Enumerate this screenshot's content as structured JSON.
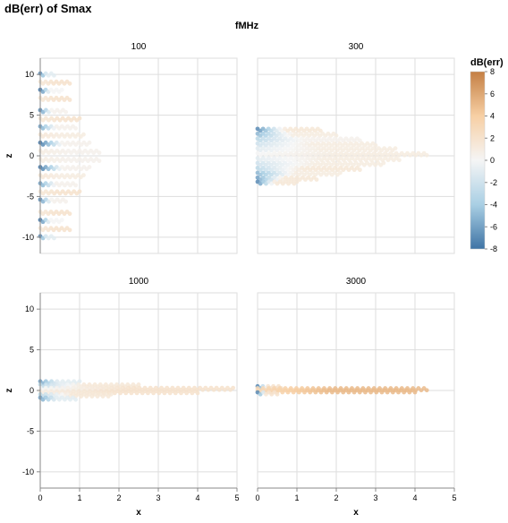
{
  "chart_data": {
    "type": "scatter",
    "title": "dB(err) of Smax",
    "facet_header": "fMHz",
    "xlabel": "x",
    "ylabel": "z",
    "xlim": [
      0,
      5
    ],
    "ylim": [
      -12,
      12
    ],
    "x_ticks": [
      0,
      1,
      2,
      3,
      4,
      5
    ],
    "y_ticks": [
      -10,
      -5,
      0,
      5,
      10
    ],
    "legend": {
      "title": "dB(err)",
      "placement": "right",
      "ticks": [
        8,
        6,
        4,
        2,
        0,
        -2,
        -4,
        -6,
        -8
      ],
      "domain": [
        -8,
        8
      ],
      "colors": {
        "low": "#3f74a5",
        "mid_low": "#a9cfe4",
        "mid": "#f5f5f5",
        "mid_high": "#f7cfa4",
        "high": "#c47f43"
      }
    },
    "facets": [
      {
        "label": "100",
        "clusters": [
          {
            "z": 10,
            "x_max": 0.35,
            "v0": -7,
            "v1": -1
          },
          {
            "z": 9,
            "x_max": 0.75,
            "v0": 1.5,
            "v1": 2
          },
          {
            "z": 8,
            "x_max": 0.55,
            "v0": -8,
            "v1": 0
          },
          {
            "z": 7,
            "x_max": 0.75,
            "v0": 1.5,
            "v1": 2
          },
          {
            "z": 5.5,
            "x_max": 0.65,
            "v0": -7,
            "v1": 0.5
          },
          {
            "z": 4.5,
            "x_max": 1.0,
            "v0": 1.5,
            "v1": 2
          },
          {
            "z": 3.5,
            "x_max": 0.9,
            "v0": -6,
            "v1": 0.5
          },
          {
            "z": 2.5,
            "x_max": 1.1,
            "v0": 1.5,
            "v1": 1
          },
          {
            "z": 1.5,
            "x_max": 1.25,
            "v0": -8,
            "v1": 0.5
          },
          {
            "z": 0.5,
            "x_max": 1.5,
            "v0": 1,
            "v1": 0.5
          },
          {
            "z": -0.5,
            "x_max": 1.5,
            "v0": 1,
            "v1": 0.5
          },
          {
            "z": -1.5,
            "x_max": 1.25,
            "v0": -8,
            "v1": 0.5
          },
          {
            "z": -2.5,
            "x_max": 1.1,
            "v0": 1.5,
            "v1": 1
          },
          {
            "z": -3.5,
            "x_max": 0.9,
            "v0": -6,
            "v1": 0.5
          },
          {
            "z": -4.5,
            "x_max": 1.0,
            "v0": 1.5,
            "v1": 2
          },
          {
            "z": -5.5,
            "x_max": 0.65,
            "v0": -7,
            "v1": 0.5
          },
          {
            "z": -7,
            "x_max": 0.75,
            "v0": 1.5,
            "v1": 2
          },
          {
            "z": -8,
            "x_max": 0.55,
            "v0": -8,
            "v1": 0
          },
          {
            "z": -9,
            "x_max": 0.75,
            "v0": 1.5,
            "v1": 2
          },
          {
            "z": -10,
            "x_max": 0.35,
            "v0": -7,
            "v1": -1
          }
        ]
      },
      {
        "label": "300",
        "clusters": [
          {
            "z": 3.2,
            "x_max": 1.6,
            "v0": -7,
            "v1": 1.5
          },
          {
            "z": 2.6,
            "x_max": 2.0,
            "v0": -5,
            "v1": 1
          },
          {
            "z": 2.0,
            "x_max": 2.6,
            "v0": -3,
            "v1": 0.5
          },
          {
            "z": 1.4,
            "x_max": 3.0,
            "v0": -2,
            "v1": 1
          },
          {
            "z": 0.8,
            "x_max": 3.5,
            "v0": -1,
            "v1": 1
          },
          {
            "z": 0.2,
            "x_max": 4.3,
            "v0": 0,
            "v1": 1
          },
          {
            "z": -0.4,
            "x_max": 3.6,
            "v0": -1,
            "v1": 1
          },
          {
            "z": -1.0,
            "x_max": 3.2,
            "v0": -2,
            "v1": 1
          },
          {
            "z": -1.6,
            "x_max": 2.6,
            "v0": -3,
            "v1": 1.5
          },
          {
            "z": -2.2,
            "x_max": 2.1,
            "v0": -5,
            "v1": 1
          },
          {
            "z": -2.8,
            "x_max": 1.5,
            "v0": -6,
            "v1": 1.5
          },
          {
            "z": -3.3,
            "x_max": 1.0,
            "v0": -7,
            "v1": 1.5
          }
        ]
      },
      {
        "label": "1000",
        "clusters": [
          {
            "z": 1.0,
            "x_max": 1.0,
            "v0": -6,
            "v1": -1
          },
          {
            "z": 0.6,
            "x_max": 2.5,
            "v0": -3,
            "v1": 1.5
          },
          {
            "z": 0.2,
            "x_max": 4.9,
            "v0": 0,
            "v1": 2
          },
          {
            "z": -0.2,
            "x_max": 4.0,
            "v0": 1,
            "v1": 2
          },
          {
            "z": -0.6,
            "x_max": 1.8,
            "v0": -3,
            "v1": 1.5
          },
          {
            "z": -1.0,
            "x_max": 0.9,
            "v0": -6,
            "v1": -1
          }
        ]
      },
      {
        "label": "3000",
        "clusters": [
          {
            "z": 0.4,
            "x_max": 0.6,
            "v0": -7,
            "v1": 2
          },
          {
            "z": 0.15,
            "x_max": 4.3,
            "v0": 3,
            "v1": 5
          },
          {
            "z": -0.1,
            "x_max": 4.0,
            "v0": 3,
            "v1": 5
          },
          {
            "z": -0.35,
            "x_max": 0.5,
            "v0": -7,
            "v1": 2
          }
        ]
      }
    ]
  }
}
